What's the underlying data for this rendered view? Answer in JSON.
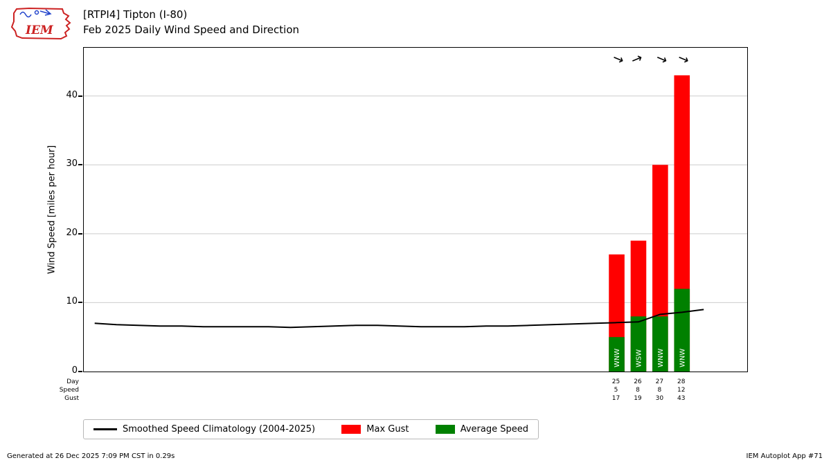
{
  "logo": {
    "text": "IEM"
  },
  "header": {
    "title_line1": "[RTPI4] Tipton (I-80)",
    "title_line2": "Feb 2025 Daily Wind Speed and Direction"
  },
  "chart_data": {
    "type": "bar",
    "title": "Feb 2025 Daily Wind Speed and Direction",
    "station": "[RTPI4] Tipton (I-80)",
    "ylabel": "Wind Speed [miles per hour]",
    "ylim": [
      0,
      47
    ],
    "yticks": [
      0,
      10,
      20,
      30,
      40
    ],
    "xlim": [
      0.5,
      31
    ],
    "grid": "horizontal",
    "axis_row_labels": [
      "Day",
      "Speed",
      "Gust"
    ],
    "bars": [
      {
        "day": 25,
        "avg_speed": 5,
        "max_gust": 17,
        "direction": "WNW",
        "direction_deg": 292.5
      },
      {
        "day": 26,
        "avg_speed": 8,
        "max_gust": 19,
        "direction": "WSW",
        "direction_deg": 247.5
      },
      {
        "day": 27,
        "avg_speed": 8,
        "max_gust": 30,
        "direction": "WNW",
        "direction_deg": 292.5
      },
      {
        "day": 28,
        "avg_speed": 12,
        "max_gust": 43,
        "direction": "WNW",
        "direction_deg": 292.5
      }
    ],
    "colors": {
      "max_gust": "#ff0000",
      "avg_speed": "#008000",
      "climatology": "#000000",
      "grid": "#cccccc"
    },
    "climatology": {
      "name": "Smoothed Speed Climatology (2004-2025)",
      "days": [
        1,
        2,
        3,
        4,
        5,
        6,
        7,
        8,
        9,
        10,
        11,
        12,
        13,
        14,
        15,
        16,
        17,
        18,
        19,
        20,
        21,
        22,
        23,
        24,
        25,
        26,
        27,
        28,
        29
      ],
      "values": [
        7.0,
        6.8,
        6.7,
        6.6,
        6.6,
        6.5,
        6.5,
        6.5,
        6.5,
        6.4,
        6.5,
        6.6,
        6.7,
        6.7,
        6.6,
        6.5,
        6.5,
        6.5,
        6.6,
        6.6,
        6.7,
        6.8,
        6.9,
        7.0,
        7.1,
        7.2,
        8.3,
        8.6,
        9.0
      ]
    }
  },
  "legend": {
    "items": [
      {
        "label": "Smoothed Speed Climatology (2004-2025)",
        "swatch": "line",
        "color": "#000000"
      },
      {
        "label": "Max Gust",
        "swatch": "box",
        "color": "#ff0000"
      },
      {
        "label": "Average Speed",
        "swatch": "box",
        "color": "#008000"
      }
    ]
  },
  "footer": {
    "left": "Generated at 26 Dec 2025 7:09 PM CST in 0.29s",
    "right": "IEM Autoplot App #71"
  }
}
